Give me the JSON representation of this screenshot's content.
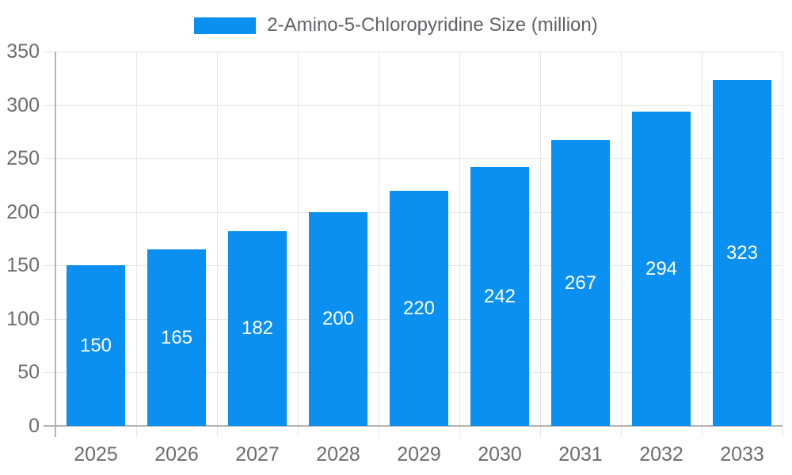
{
  "chart_data": {
    "type": "bar",
    "title": "",
    "legend": {
      "label": "2-Amino-5-Chloropyridine Size (million)",
      "position": "top"
    },
    "categories": [
      "2025",
      "2026",
      "2027",
      "2028",
      "2029",
      "2030",
      "2031",
      "2032",
      "2033"
    ],
    "series": [
      {
        "name": "2-Amino-5-Chloropyridine Size (million)",
        "values": [
          150,
          165,
          182,
          200,
          220,
          242,
          267,
          294,
          323
        ]
      }
    ],
    "xlabel": "",
    "ylabel": "",
    "ylim": [
      0,
      350
    ],
    "yticks": [
      0,
      50,
      100,
      150,
      200,
      250,
      300,
      350
    ],
    "grid": true,
    "value_labels": "inside-center",
    "colors": {
      "bar": "#0a90f0",
      "value_label": "#ffffff",
      "axis_label": "#6d6d6d",
      "legend_label": "#5f6368",
      "gridline": "#e6e6e6",
      "axis_line": "#b3b3b3",
      "background": "#ffffff"
    }
  }
}
